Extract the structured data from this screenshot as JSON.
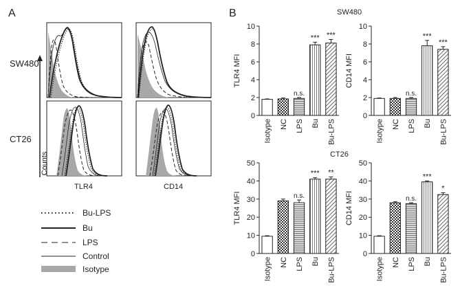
{
  "colors": {
    "ink": "#222222",
    "isotype_fill": "#a8a8a8",
    "bar_fill": "#ffffff"
  },
  "panel_a": {
    "label": "A",
    "cell_labels": [
      "SW480",
      "CT26"
    ],
    "y_axis_label": "Counts",
    "x_axis_labels": [
      "TLR4",
      "CD14"
    ],
    "legend": [
      {
        "label": "Bu-LPS",
        "style": "dotted"
      },
      {
        "label": "Bu",
        "style": "thick-solid"
      },
      {
        "label": "LPS",
        "style": "dashed"
      },
      {
        "label": "Control",
        "style": "thin-solid"
      },
      {
        "label": "Isotype",
        "style": "gray-fill"
      }
    ]
  },
  "panel_b": {
    "label": "B",
    "titles": [
      "SW480",
      "CT26"
    ]
  },
  "chart_data": [
    {
      "id": "sw480-tlr4",
      "type": "bar",
      "group": "SW480",
      "ylabel": "TLR4 MFI",
      "categories": [
        "Isotype",
        "NC",
        "LPS",
        "Bu",
        "Bu-LPS"
      ],
      "patterns": [
        "white",
        "checker",
        "hlines",
        "vlines",
        "diag"
      ],
      "values": [
        1.8,
        1.85,
        1.9,
        7.9,
        8.1
      ],
      "errors": [
        0.05,
        0.1,
        0.1,
        0.3,
        0.4
      ],
      "significance": [
        "",
        "",
        "n.s.",
        "***",
        "***"
      ],
      "ylim": [
        0,
        10
      ],
      "yticks": [
        0,
        2,
        4,
        6,
        8,
        10
      ]
    },
    {
      "id": "sw480-cd14",
      "type": "bar",
      "group": "SW480",
      "ylabel": "CD14 MFI",
      "categories": [
        "Isotype",
        "NC",
        "LPS",
        "Bu",
        "Bu-LPS"
      ],
      "patterns": [
        "white",
        "checker",
        "hlines",
        "vlines",
        "diag"
      ],
      "values": [
        1.9,
        1.9,
        1.9,
        7.8,
        7.4
      ],
      "errors": [
        0.05,
        0.1,
        0.1,
        0.6,
        0.3
      ],
      "significance": [
        "",
        "",
        "n.s.",
        "***",
        "***"
      ],
      "ylim": [
        0,
        10
      ],
      "yticks": [
        0,
        2,
        4,
        6,
        8,
        10
      ]
    },
    {
      "id": "ct26-tlr4",
      "type": "bar",
      "group": "CT26",
      "ylabel": "TLR4 MFI",
      "categories": [
        "Isotype",
        "NC",
        "LPS",
        "Bu",
        "Bu-LPS"
      ],
      "patterns": [
        "white",
        "checker",
        "hlines",
        "vlines",
        "diag"
      ],
      "values": [
        9.5,
        29,
        28,
        41,
        41
      ],
      "errors": [
        0.3,
        1.0,
        1.5,
        0.8,
        1.2
      ],
      "significance": [
        "",
        "",
        "n.s.",
        "***",
        "**"
      ],
      "ylim": [
        0,
        50
      ],
      "yticks": [
        0,
        10,
        20,
        30,
        40,
        50
      ]
    },
    {
      "id": "ct26-cd14",
      "type": "bar",
      "group": "CT26",
      "ylabel": "CD14 MFI",
      "categories": [
        "Isotype",
        "NC",
        "LPS",
        "Bu",
        "Bu-LPS"
      ],
      "patterns": [
        "white",
        "checker",
        "hlines",
        "vlines",
        "diag"
      ],
      "values": [
        9.5,
        28,
        27.5,
        39.5,
        32.5
      ],
      "errors": [
        0.3,
        0.5,
        0.5,
        0.5,
        1.0
      ],
      "significance": [
        "",
        "",
        "n.s.",
        "***",
        "*"
      ],
      "ylim": [
        0,
        50
      ],
      "yticks": [
        0,
        10,
        20,
        30,
        40,
        50
      ]
    }
  ]
}
